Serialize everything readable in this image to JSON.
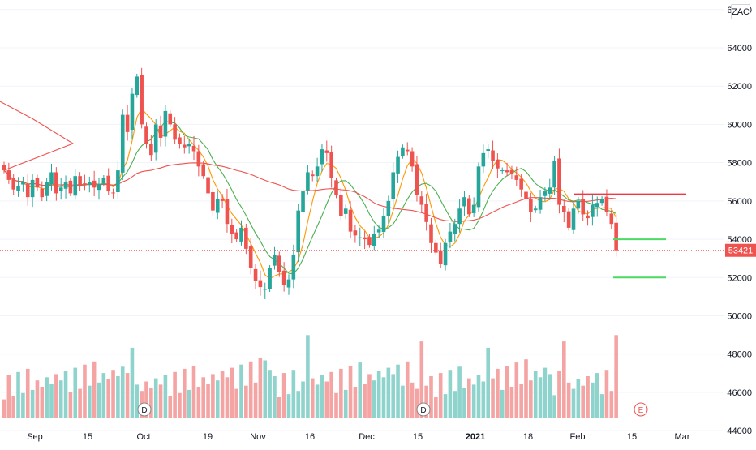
{
  "symbol": "ZAC",
  "current_price": "53421",
  "colors": {
    "up": "#26a69a",
    "down": "#ef5350",
    "vol_up": "#8fd3cd",
    "vol_down": "#f3a4a3",
    "ma_long": "#ef5350",
    "ma_mid": "#4caf50",
    "ma_fast": "#ff9800",
    "level_red": "#f23645",
    "level_green": "#4cd964",
    "grid": "#f0f3fa",
    "axis_text": "#131722"
  },
  "x_axis_labels": [
    "Sep",
    "15",
    "Oct",
    "19",
    "Nov",
    "16",
    "Dec",
    "15",
    "2021",
    "18",
    "Feb",
    "15",
    "Mar"
  ],
  "event_markers": [
    "D",
    "D",
    "E"
  ],
  "chart_data": {
    "type": "candlestick",
    "y_axis": {
      "range": [
        43200,
        66500
      ],
      "ticks": [
        44000,
        46000,
        48000,
        50000,
        52000,
        54000,
        56000,
        58000,
        60000,
        62000,
        64000,
        66000
      ]
    },
    "volume_scale_max": 100,
    "close_path": [
      57600,
      57100,
      56600,
      56800,
      57000,
      56200,
      57100,
      56700,
      56200,
      57000,
      57500,
      56400,
      56700,
      57000,
      56400,
      57300,
      56800,
      56900,
      57000,
      56700,
      56900,
      57200,
      56500,
      56400,
      57600,
      60500,
      59600,
      61600,
      62500,
      60000,
      59000,
      58400,
      60000,
      59300,
      60700,
      60000,
      59200,
      59000,
      58800,
      59000,
      58600,
      57800,
      57300,
      56400,
      55500,
      56100,
      56000,
      54800,
      54300,
      54000,
      54600,
      53500,
      52500,
      51800,
      51500,
      51400,
      52500,
      53200,
      52300,
      51600,
      51900,
      53200,
      55500,
      56500,
      57500,
      57300,
      57800,
      58700,
      58500,
      57200,
      56300,
      55200,
      55600,
      54400,
      54200,
      54100,
      54000,
      53700,
      54300,
      54500,
      55200,
      56000,
      57500,
      58300,
      58800,
      58600,
      57800,
      56300,
      55800,
      54900,
      53800,
      53300,
      52700,
      53800,
      54400,
      54800,
      55600,
      56200,
      55300,
      55800,
      57800,
      58500,
      58700,
      58100,
      57700,
      57600,
      57500,
      57400,
      57100,
      56600,
      56100,
      55400,
      55600,
      56200,
      56500,
      56700,
      58100,
      55800,
      55400,
      54600,
      55600,
      56000,
      55300,
      55100,
      55800,
      55900,
      56100,
      55400,
      54800,
      53421
    ],
    "moving_averages": [
      {
        "period": 5,
        "color": "orange"
      },
      {
        "period": 10,
        "color": "green"
      },
      {
        "period": 50,
        "color": "red"
      }
    ],
    "horizontal_levels": [
      {
        "value": 56350,
        "color": "red"
      },
      {
        "value": 54000,
        "color": "green"
      },
      {
        "value": 52000,
        "color": "green"
      }
    ],
    "last_value": 53421
  }
}
